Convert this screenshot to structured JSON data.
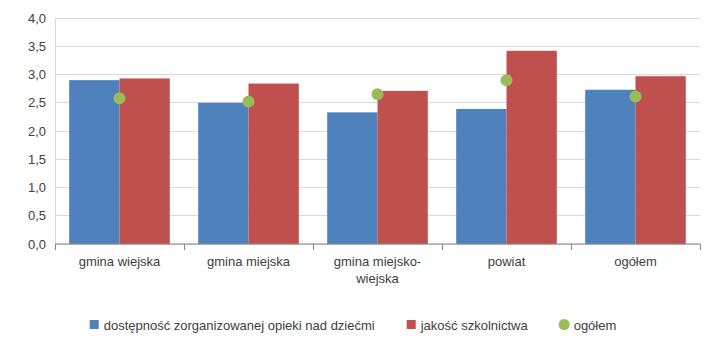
{
  "chart_data": {
    "type": "bar",
    "categories": [
      "gmina wiejska",
      "gmina miejska",
      "gmina miejsko-wiejska",
      "powiat",
      "ogółem"
    ],
    "series": [
      {
        "name": "dostępność zorganizowanej opieki nad dziećmi",
        "type": "bar",
        "color": "#4f81bd",
        "values": [
          2.9,
          2.5,
          2.33,
          2.39,
          2.73
        ]
      },
      {
        "name": "jakość szkolnictwa",
        "type": "bar",
        "color": "#c0504d",
        "values": [
          2.93,
          2.84,
          2.71,
          3.42,
          2.97
        ]
      },
      {
        "name": "ogółem",
        "type": "scatter",
        "marker": "circle",
        "color": "#9bbb59",
        "values": [
          2.58,
          2.52,
          2.65,
          2.9,
          2.61
        ]
      }
    ],
    "ylim": [
      0,
      4
    ],
    "yticks": [
      {
        "value": 0,
        "label": "0,0"
      },
      {
        "value": 0.5,
        "label": "0,5"
      },
      {
        "value": 1,
        "label": "1,0"
      },
      {
        "value": 1.5,
        "label": "1,5"
      },
      {
        "value": 2,
        "label": "2,0"
      },
      {
        "value": 2.5,
        "label": "2,5"
      },
      {
        "value": 3,
        "label": "3,0"
      },
      {
        "value": 3.5,
        "label": "3,5"
      },
      {
        "value": 4,
        "label": "4,0"
      }
    ],
    "grid": true,
    "legend": "bottom"
  }
}
